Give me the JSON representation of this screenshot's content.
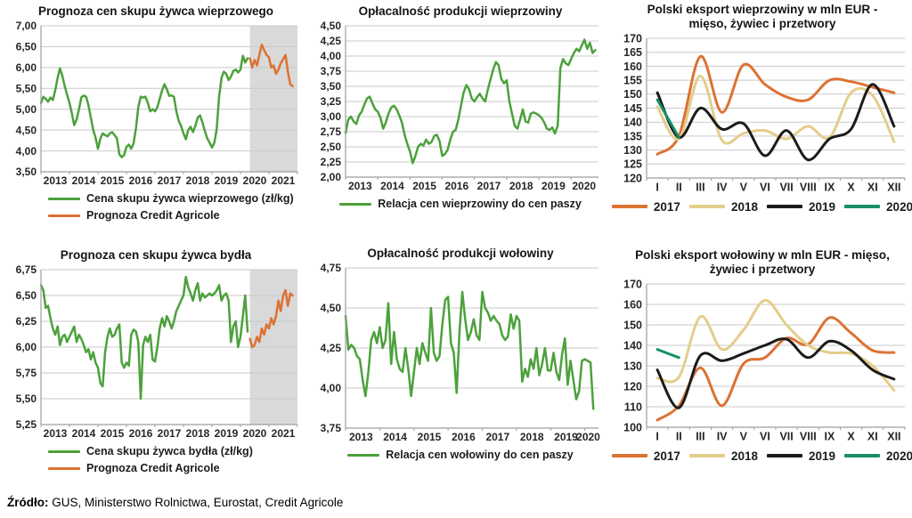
{
  "style": {
    "grid": "#c9c9c9",
    "axis": "#9e9e9e",
    "band": "#d9d9d9",
    "text": "#262626",
    "green": "#4CA13C",
    "orange": "#DC7233",
    "tan": "#E4CD8B",
    "black": "#1B1B1B",
    "teal": "#17906A"
  },
  "source": {
    "label": "Źródło:",
    "text": " GUS, Ministerstwo Rolnictwa, Eurostat, Credit Agricole"
  },
  "chart_data": [
    {
      "id": "pork-price-forecast",
      "type": "line",
      "title": "Prognoza cen skupu żywca wieprzowego",
      "xlim": [
        2013,
        2022
      ],
      "ylim": [
        3.5,
        7.0
      ],
      "grid": true,
      "legend_position": "bottom",
      "yticks": {
        "values": [
          3.5,
          4.0,
          4.5,
          5.0,
          5.5,
          6.0,
          6.5,
          7.0
        ],
        "labels": [
          "3,50",
          "4,00",
          "4,50",
          "5,00",
          "5,50",
          "6,00",
          "6,50",
          "7,00"
        ]
      },
      "xticks": {
        "tick_values": [
          2013,
          2014,
          2015,
          2016,
          2017,
          2018,
          2019,
          2020,
          2021,
          2022
        ],
        "label_values": [
          2013.5,
          2014.5,
          2015.5,
          2016.5,
          2017.5,
          2018.5,
          2019.5,
          2020.5,
          2021.5
        ],
        "labels": [
          "2013",
          "2014",
          "2015",
          "2016",
          "2017",
          "2018",
          "2019",
          "2020",
          "2021"
        ]
      },
      "band": {
        "from": 2020.33,
        "to": 2022
      },
      "series": [
        {
          "name": "Cena skupu żywca wieprzowego (zł/kg)",
          "color": "#4CA13C",
          "width": 2.5,
          "x_start": 2013,
          "x_step": 0.08333,
          "values": [
            5.15,
            5.3,
            5.25,
            5.18,
            5.28,
            5.22,
            5.45,
            5.75,
            5.98,
            5.8,
            5.55,
            5.35,
            5.15,
            4.9,
            4.62,
            4.75,
            5.0,
            5.28,
            5.33,
            5.3,
            5.1,
            4.8,
            4.5,
            4.32,
            4.05,
            4.3,
            4.42,
            4.38,
            4.35,
            4.42,
            4.45,
            4.38,
            4.3,
            3.92,
            3.85,
            3.9,
            4.1,
            4.15,
            4.05,
            4.18,
            4.55,
            5.05,
            5.3,
            5.28,
            5.3,
            5.15,
            4.95,
            5.0,
            4.95,
            5.05,
            5.25,
            5.45,
            5.6,
            5.48,
            5.32,
            5.33,
            5.3,
            4.95,
            4.72,
            4.6,
            4.42,
            4.28,
            4.5,
            4.58,
            4.45,
            4.6,
            4.8,
            4.85,
            4.68,
            4.48,
            4.3,
            4.2,
            4.08,
            4.2,
            4.52,
            5.3,
            5.75,
            5.9,
            5.85,
            5.7,
            5.78,
            5.92,
            5.95,
            5.88,
            5.95,
            6.28,
            6.12,
            6.22
          ]
        },
        {
          "name": "Prognoza Credit Agricole",
          "color": "#DC7233",
          "width": 2.5,
          "x_start": 2020.33,
          "x_step": 0.08333,
          "values": [
            6.22,
            6.0,
            6.18,
            6.05,
            6.3,
            6.55,
            6.42,
            6.3,
            6.25,
            6.0,
            6.05,
            5.85,
            5.95,
            6.1,
            6.2,
            6.3,
            5.9,
            5.6,
            5.55
          ]
        }
      ]
    },
    {
      "id": "pork-profitability",
      "type": "line",
      "title": "Opłacalność produkcji wieprzowiny",
      "xlim": [
        2013,
        2020.85
      ],
      "ylim": [
        2.0,
        4.5
      ],
      "grid": true,
      "legend_position": "bottom",
      "yticks": {
        "values": [
          2.0,
          2.25,
          2.5,
          2.75,
          3.0,
          3.25,
          3.5,
          3.75,
          4.0,
          4.25,
          4.5
        ],
        "labels": [
          "2,00",
          "2,25",
          "2,50",
          "2,75",
          "3,00",
          "3,25",
          "3,50",
          "3,75",
          "4,00",
          "4,25",
          "4,50"
        ]
      },
      "xticks": {
        "tick_values": [
          2013,
          2014,
          2015,
          2016,
          2017,
          2018,
          2019,
          2020
        ],
        "label_values": [
          2013.45,
          2014.45,
          2015.45,
          2016.45,
          2017.45,
          2018.45,
          2019.45,
          2020.4
        ],
        "labels": [
          "2013",
          "2014",
          "2015",
          "2016",
          "2017",
          "2018",
          "2019",
          "2020"
        ]
      },
      "series": [
        {
          "name": "Relacja cen wieprzowiny do cen paszy",
          "color": "#4CA13C",
          "width": 2.5,
          "x_start": 2013,
          "x_step": 0.08333,
          "values": [
            2.73,
            2.95,
            3.0,
            2.92,
            2.88,
            3.02,
            3.08,
            3.2,
            3.3,
            3.33,
            3.22,
            3.12,
            3.08,
            2.98,
            2.8,
            2.9,
            3.05,
            3.15,
            3.18,
            3.12,
            3.02,
            2.9,
            2.7,
            2.55,
            2.42,
            2.23,
            2.35,
            2.5,
            2.55,
            2.52,
            2.62,
            2.55,
            2.58,
            2.68,
            2.7,
            2.6,
            2.35,
            2.38,
            2.45,
            2.62,
            2.75,
            2.78,
            2.95,
            3.18,
            3.4,
            3.52,
            3.45,
            3.3,
            3.25,
            3.32,
            3.38,
            3.3,
            3.25,
            3.45,
            3.62,
            3.78,
            3.9,
            3.85,
            3.62,
            3.55,
            3.6,
            3.25,
            3.05,
            2.85,
            2.8,
            2.95,
            3.12,
            2.92,
            2.9,
            3.05,
            3.07,
            3.05,
            3.02,
            2.98,
            2.9,
            2.8,
            2.78,
            2.82,
            2.72,
            2.85,
            3.8,
            3.95,
            3.88,
            3.85,
            3.95,
            4.05,
            4.12,
            4.08,
            4.18,
            4.27,
            4.12,
            4.22,
            4.05,
            4.1
          ]
        }
      ]
    },
    {
      "id": "pork-export",
      "type": "line",
      "title": "Polski eksport wieprzowiny w mln EUR - mięso, żywiec i przetwory",
      "xlim": [
        0.5,
        12.5
      ],
      "ylim": [
        120,
        170
      ],
      "grid": true,
      "legend_position": "bottom",
      "yticks": {
        "values": [
          120,
          125,
          130,
          135,
          140,
          145,
          150,
          155,
          160,
          165,
          170
        ],
        "labels": [
          "120",
          "125",
          "130",
          "135",
          "140",
          "145",
          "150",
          "155",
          "160",
          "165",
          "170"
        ]
      },
      "xticks": {
        "tick_values": [
          0.5,
          1.5,
          2.5,
          3.5,
          4.5,
          5.5,
          6.5,
          7.5,
          8.5,
          9.5,
          10.5,
          11.5,
          12.5
        ],
        "label_values": [
          1,
          2,
          3,
          4,
          5,
          6,
          7,
          8,
          9,
          10,
          11,
          12
        ],
        "labels": [
          "I",
          "II",
          "III",
          "IV",
          "V",
          "VI",
          "VII",
          "VIII",
          "IX",
          "X",
          "XI",
          "XII"
        ]
      },
      "series": [
        {
          "name": "2017",
          "color": "#DC7233",
          "width": 3,
          "smooth": true,
          "x_start": 1,
          "x_step": 1,
          "values": [
            128.5,
            135,
            163.5,
            143.5,
            160.5,
            153.5,
            149,
            148,
            155,
            154.5,
            152.5,
            150.5
          ]
        },
        {
          "name": "2018",
          "color": "#E4CD8B",
          "width": 3,
          "smooth": true,
          "x_start": 1,
          "x_step": 1,
          "values": [
            145.5,
            134,
            156.5,
            133.5,
            136,
            137,
            134,
            138.5,
            134.5,
            150.5,
            149.5,
            133
          ]
        },
        {
          "name": "2019",
          "color": "#1B1B1B",
          "width": 3,
          "smooth": true,
          "x_start": 1,
          "x_step": 1,
          "values": [
            150.5,
            134.5,
            145,
            137.5,
            139.5,
            128,
            137,
            126.5,
            134,
            137.5,
            153.5,
            138.5
          ]
        },
        {
          "name": "2020",
          "color": "#17906A",
          "width": 3,
          "smooth": true,
          "x_start": 1,
          "x_step": 1,
          "values": [
            148,
            134.5
          ]
        }
      ]
    },
    {
      "id": "beef-price-forecast",
      "type": "line",
      "title": "Prognoza cen skupu żywca bydła",
      "xlim": [
        2013,
        2022
      ],
      "ylim": [
        5.25,
        6.75
      ],
      "grid": true,
      "legend_position": "bottom",
      "yticks": {
        "values": [
          5.25,
          5.5,
          5.75,
          6.0,
          6.25,
          6.5,
          6.75
        ],
        "labels": [
          "5,25",
          "5,50",
          "5,75",
          "6,00",
          "6,25",
          "6,50",
          "6,75"
        ]
      },
      "xticks": {
        "tick_values": [
          2013,
          2014,
          2015,
          2016,
          2017,
          2018,
          2019,
          2020,
          2021,
          2022
        ],
        "label_values": [
          2013.5,
          2014.5,
          2015.5,
          2016.5,
          2017.5,
          2018.5,
          2019.5,
          2020.5,
          2021.5
        ],
        "labels": [
          "2013",
          "2014",
          "2015",
          "2016",
          "2017",
          "2018",
          "2019",
          "2020",
          "2021"
        ]
      },
      "band": {
        "from": 2020.33,
        "to": 2022
      },
      "series": [
        {
          "name": "Cena skupu żywca bydła (zł/kg)",
          "color": "#4CA13C",
          "width": 2.5,
          "x_start": 2013,
          "x_step": 0.08333,
          "values": [
            6.6,
            6.55,
            6.38,
            6.4,
            6.28,
            6.18,
            6.12,
            6.2,
            6.02,
            6.1,
            6.12,
            6.05,
            6.1,
            6.15,
            6.2,
            6.05,
            6.12,
            6.08,
            6.02,
            5.95,
            5.98,
            5.88,
            5.95,
            5.85,
            5.8,
            5.65,
            5.62,
            5.95,
            6.1,
            6.18,
            6.1,
            6.12,
            6.18,
            6.22,
            5.85,
            5.8,
            5.85,
            5.82,
            6.12,
            6.17,
            6.15,
            6.05,
            5.5,
            6.02,
            6.1,
            6.05,
            6.12,
            5.88,
            5.86,
            6.0,
            6.18,
            6.28,
            6.2,
            6.3,
            6.25,
            6.18,
            6.25,
            6.35,
            6.4,
            6.45,
            6.5,
            6.68,
            6.58,
            6.52,
            6.45,
            6.55,
            6.62,
            6.45,
            6.52,
            6.48,
            6.5,
            6.52,
            6.5,
            6.52,
            6.55,
            6.6,
            6.45,
            6.5,
            6.52,
            6.45,
            6.05,
            6.2,
            6.25,
            6.0,
            6.1,
            6.3,
            6.5,
            6.15
          ]
        },
        {
          "name": "Prognoza Credit Agricole",
          "color": "#DC7233",
          "width": 2.5,
          "x_start": 2020.33,
          "x_step": 0.08333,
          "values": [
            6.08,
            6.0,
            6.02,
            6.1,
            6.05,
            6.18,
            6.12,
            6.22,
            6.18,
            6.28,
            6.22,
            6.3,
            6.45,
            6.35,
            6.5,
            6.55,
            6.4,
            6.52,
            6.5
          ]
        }
      ]
    },
    {
      "id": "beef-profitability",
      "type": "line",
      "title": "Opłacalność produkcji wołowiny",
      "xlim": [
        2013,
        2020.4
      ],
      "ylim": [
        3.75,
        4.75
      ],
      "grid": true,
      "legend_position": "bottom",
      "yticks": {
        "values": [
          3.75,
          4.0,
          4.25,
          4.5,
          4.75
        ],
        "labels": [
          "3,75",
          "4,00",
          "4,25",
          "4,50",
          "4,75"
        ]
      },
      "xticks": {
        "tick_values": [
          2013,
          2014,
          2015,
          2016,
          2017,
          2018,
          2019,
          2020
        ],
        "label_values": [
          2013.45,
          2014.45,
          2015.45,
          2016.45,
          2017.45,
          2018.45,
          2019.45,
          2020.1
        ],
        "labels": [
          "2013",
          "2014",
          "2015",
          "2016",
          "2017",
          "2018",
          "2019",
          "2020"
        ]
      },
      "series": [
        {
          "name": "Relacja cen wołowiny do cen paszy",
          "color": "#4CA13C",
          "width": 2.5,
          "x_start": 2013,
          "x_step": 0.08333,
          "values": [
            4.45,
            4.24,
            4.27,
            4.25,
            4.2,
            4.18,
            4.05,
            3.95,
            4.1,
            4.3,
            4.35,
            4.28,
            4.38,
            4.25,
            4.3,
            4.53,
            4.15,
            4.35,
            4.18,
            4.12,
            4.1,
            4.25,
            4.12,
            3.95,
            4.1,
            4.25,
            4.15,
            4.28,
            4.22,
            4.17,
            4.5,
            4.22,
            4.17,
            4.2,
            4.4,
            4.55,
            4.57,
            4.28,
            4.22,
            3.97,
            4.35,
            4.6,
            4.43,
            4.3,
            4.35,
            4.43,
            4.33,
            4.3,
            4.6,
            4.5,
            4.47,
            4.42,
            4.45,
            4.42,
            4.4,
            4.33,
            4.3,
            4.32,
            4.46,
            4.37,
            4.45,
            4.42,
            4.04,
            4.12,
            4.07,
            4.18,
            4.12,
            4.25,
            4.08,
            4.15,
            4.25,
            4.11,
            4.11,
            4.22,
            4.1,
            4.05,
            4.21,
            4.31,
            4.02,
            4.17,
            4.05,
            3.93,
            3.98,
            4.17,
            4.18,
            4.17,
            4.16,
            3.87
          ]
        }
      ]
    },
    {
      "id": "beef-export",
      "type": "line",
      "title": "Polski eksport wołowiny w mln EUR - mięso, żywiec i przetwory",
      "xlim": [
        0.5,
        12.5
      ],
      "ylim": [
        100,
        170
      ],
      "grid": true,
      "legend_position": "bottom",
      "yticks": {
        "values": [
          100,
          110,
          120,
          130,
          140,
          150,
          160,
          170
        ],
        "labels": [
          "100",
          "110",
          "120",
          "130",
          "140",
          "150",
          "160",
          "170"
        ]
      },
      "xticks": {
        "tick_values": [
          0.5,
          1.5,
          2.5,
          3.5,
          4.5,
          5.5,
          6.5,
          7.5,
          8.5,
          9.5,
          10.5,
          11.5,
          12.5
        ],
        "label_values": [
          1,
          2,
          3,
          4,
          5,
          6,
          7,
          8,
          9,
          10,
          11,
          12
        ],
        "labels": [
          "I",
          "II",
          "III",
          "IV",
          "V",
          "VI",
          "VII",
          "VIII",
          "IX",
          "X",
          "XI",
          "XII"
        ]
      },
      "series": [
        {
          "name": "2017",
          "color": "#DC7233",
          "width": 3,
          "smooth": true,
          "x_start": 1,
          "x_step": 1,
          "values": [
            103.5,
            110.5,
            129,
            110.5,
            131,
            134,
            143.5,
            140.5,
            153.5,
            146,
            137.5,
            136.5
          ]
        },
        {
          "name": "2018",
          "color": "#E4CD8B",
          "width": 3,
          "smooth": true,
          "x_start": 1,
          "x_step": 1,
          "values": [
            124,
            124.5,
            154,
            138,
            147.5,
            162,
            150,
            140,
            136.5,
            136,
            130,
            118
          ]
        },
        {
          "name": "2019",
          "color": "#1B1B1B",
          "width": 3,
          "smooth": true,
          "x_start": 1,
          "x_step": 1,
          "values": [
            128,
            109.5,
            135,
            132.5,
            136,
            140,
            143,
            134,
            142,
            137.5,
            128,
            123.5
          ]
        },
        {
          "name": "2020",
          "color": "#17906A",
          "width": 3,
          "smooth": true,
          "x_start": 1,
          "x_step": 1,
          "values": [
            138,
            134
          ]
        }
      ]
    }
  ]
}
